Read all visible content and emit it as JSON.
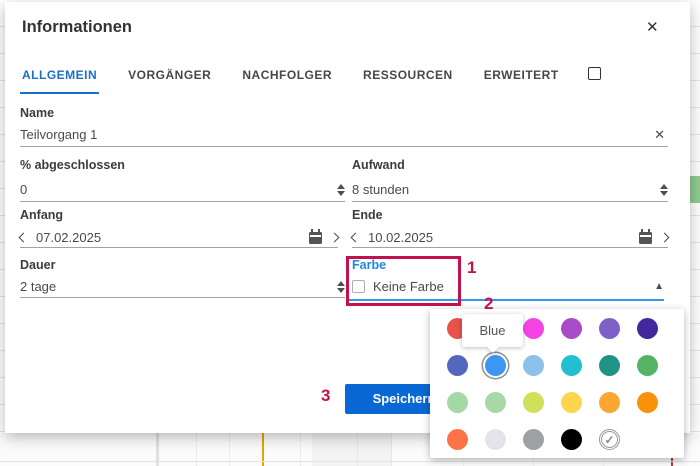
{
  "dialog": {
    "title": "Informationen",
    "tabs": [
      {
        "label": "ALLGEMEIN",
        "active": true
      },
      {
        "label": "VORGÄNGER",
        "active": false
      },
      {
        "label": "NACHFOLGER",
        "active": false
      },
      {
        "label": "RESSOURCEN",
        "active": false
      },
      {
        "label": "ERWEITERT",
        "active": false
      }
    ],
    "fields": {
      "name": {
        "label": "Name",
        "value": "Teilvorgang 1"
      },
      "percent": {
        "label": "% abgeschlossen",
        "value": "0"
      },
      "effort": {
        "label": "Aufwand",
        "value": "8 stunden"
      },
      "start": {
        "label": "Anfang",
        "value": "07.02.2025"
      },
      "end": {
        "label": "Ende",
        "value": "10.02.2025"
      },
      "duration": {
        "label": "Dauer",
        "value": "2 tage"
      },
      "color": {
        "label": "Farbe",
        "checkbox_label": "Keine Farbe",
        "checked": false
      }
    },
    "buttons": {
      "save": "Speichern"
    },
    "icons": {
      "close": "✕",
      "clear": "✕",
      "collapse": "▲",
      "check": "✓"
    },
    "accent_color": "#1A6FC7"
  },
  "color_picker": {
    "tooltip": "Blue",
    "selected_color": "Blue",
    "rows": [
      [
        {
          "name": "red",
          "hex": "#E7524C"
        },
        {
          "name": "pink",
          "hex": "#F0609E"
        },
        {
          "name": "magenta",
          "hex": "#F544E5"
        },
        {
          "name": "purple",
          "hex": "#AA4BC9"
        },
        {
          "name": "violet",
          "hex": "#7D61C9"
        },
        {
          "name": "deep-purple",
          "hex": "#43289D"
        }
      ],
      [
        {
          "name": "indigo",
          "hex": "#5566C0"
        },
        {
          "name": "blue",
          "hex": "#3D96F2",
          "selected": true
        },
        {
          "name": "light-blue",
          "hex": "#8CC1E9"
        },
        {
          "name": "cyan",
          "hex": "#21C0D0"
        },
        {
          "name": "teal",
          "hex": "#219287"
        },
        {
          "name": "green",
          "hex": "#55B365"
        }
      ],
      [
        {
          "name": "light-green",
          "hex": "#A5D7A7"
        },
        {
          "name": "pale-green",
          "hex": "#A8D8A8"
        },
        {
          "name": "lime",
          "hex": "#D0E05A"
        },
        {
          "name": "yellow",
          "hex": "#FFD44F"
        },
        {
          "name": "orange",
          "hex": "#FBA62F"
        },
        {
          "name": "dark-orange",
          "hex": "#F9920B"
        }
      ],
      [
        {
          "name": "deep-orange",
          "hex": "#FB7347"
        },
        {
          "name": "light-gray",
          "hex": "#E2E4E9"
        },
        {
          "name": "gray",
          "hex": "#9EA0A2"
        },
        {
          "name": "black",
          "hex": "#000000"
        },
        {
          "name": "no-color-default",
          "type": "check"
        }
      ]
    ]
  },
  "annotations": {
    "step1": "1",
    "step2": "2",
    "step3": "3",
    "color": "#C1114E"
  }
}
